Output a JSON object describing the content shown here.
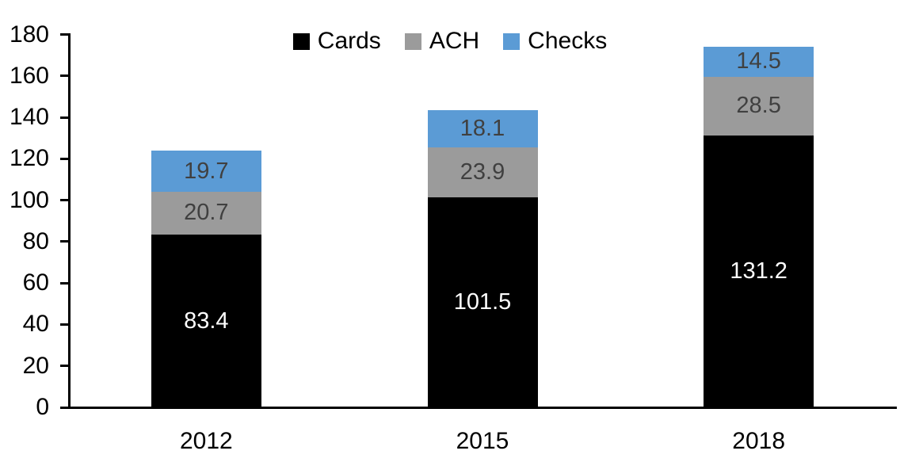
{
  "chart_data": {
    "type": "bar",
    "stacked": true,
    "title": "",
    "xlabel": "",
    "ylabel": "",
    "categories": [
      "2012",
      "2015",
      "2018"
    ],
    "series": [
      {
        "name": "Cards",
        "color": "#000000",
        "label_color": "#FFFFFF",
        "values": [
          83.4,
          101.5,
          131.2
        ]
      },
      {
        "name": "ACH",
        "color": "#9B9B9B",
        "label_color": "#404040",
        "values": [
          20.7,
          23.9,
          28.5
        ]
      },
      {
        "name": "Checks",
        "color": "#5B9BD5",
        "label_color": "#404040",
        "values": [
          19.7,
          18.1,
          14.5
        ]
      }
    ],
    "ylim": [
      0,
      180
    ],
    "yticks": [
      0,
      20,
      40,
      60,
      80,
      100,
      120,
      140,
      160,
      180
    ],
    "grid": false,
    "legend_position": "top"
  },
  "colors": {
    "axis": "#000000",
    "background": "#FFFFFF"
  }
}
